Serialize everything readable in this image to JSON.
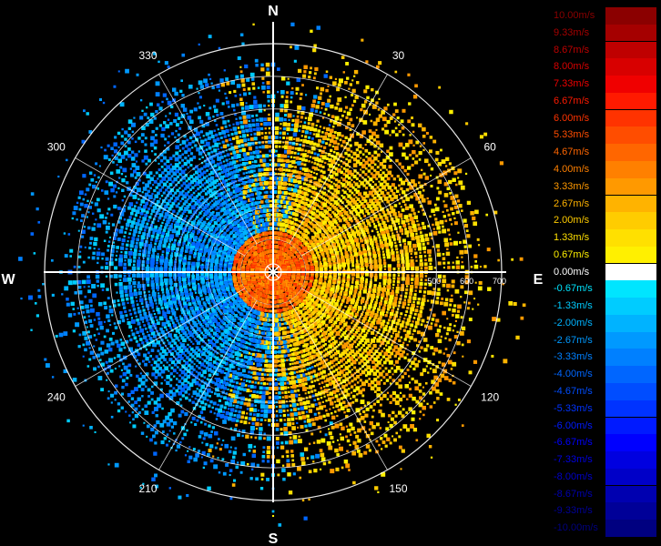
{
  "compass": {
    "north": "N",
    "east": "E",
    "south": "S",
    "west": "W"
  },
  "azimuth_labels": [
    {
      "deg": 30,
      "text": "30"
    },
    {
      "deg": 60,
      "text": "60"
    },
    {
      "deg": 120,
      "text": "120"
    },
    {
      "deg": 150,
      "text": "150"
    },
    {
      "deg": 210,
      "text": "210"
    },
    {
      "deg": 240,
      "text": "240"
    },
    {
      "deg": 300,
      "text": "300"
    },
    {
      "deg": 330,
      "text": "330"
    }
  ],
  "range_labels": [
    {
      "value": 500,
      "text": "500"
    },
    {
      "value": 600,
      "text": "600"
    },
    {
      "value": 700,
      "text": "700"
    }
  ],
  "range_ring_values": [
    100,
    200,
    300,
    400,
    500,
    600,
    700
  ],
  "legend": [
    {
      "label": "10.00m/s",
      "color": "#8b0000",
      "text_color": "#8b0000"
    },
    {
      "label": "9.33m/s",
      "color": "#a50000",
      "text_color": "#a50000"
    },
    {
      "label": "8.67m/s",
      "color": "#bf0000",
      "text_color": "#bf0000"
    },
    {
      "label": "8.00m/s",
      "color": "#d80000",
      "text_color": "#d80000"
    },
    {
      "label": "7.33m/s",
      "color": "#f00000",
      "text_color": "#f00000"
    },
    {
      "label": "6.67m/s",
      "color": "#ff1a00",
      "text_color": "#ff1a00"
    },
    {
      "label": "6.00m/s",
      "color": "#ff3300",
      "text_color": "#ff3300"
    },
    {
      "label": "5.33m/s",
      "color": "#ff4d00",
      "text_color": "#ff4d00"
    },
    {
      "label": "4.67m/s",
      "color": "#ff6600",
      "text_color": "#ff6600"
    },
    {
      "label": "4.00m/s",
      "color": "#ff8000",
      "text_color": "#ff8000"
    },
    {
      "label": "3.33m/s",
      "color": "#ff9900",
      "text_color": "#ff9900"
    },
    {
      "label": "2.67m/s",
      "color": "#ffb300",
      "text_color": "#ffb300"
    },
    {
      "label": "2.00m/s",
      "color": "#ffcc00",
      "text_color": "#ffcc00"
    },
    {
      "label": "1.33m/s",
      "color": "#ffe000",
      "text_color": "#ffe000"
    },
    {
      "label": "0.67m/s",
      "color": "#fff000",
      "text_color": "#fff000"
    },
    {
      "label": "0.00m/s",
      "color": "#ffffff",
      "text_color": "#ffffff"
    },
    {
      "label": "-0.67m/s",
      "color": "#00e5ff",
      "text_color": "#00e5ff"
    },
    {
      "label": "-1.33m/s",
      "color": "#00ccff",
      "text_color": "#00ccff"
    },
    {
      "label": "-2.00m/s",
      "color": "#00b3ff",
      "text_color": "#00b3ff"
    },
    {
      "label": "-2.67m/s",
      "color": "#0099ff",
      "text_color": "#0099ff"
    },
    {
      "label": "-3.33m/s",
      "color": "#0080ff",
      "text_color": "#0080ff"
    },
    {
      "label": "-4.00m/s",
      "color": "#0066ff",
      "text_color": "#0066ff"
    },
    {
      "label": "-4.67m/s",
      "color": "#004dff",
      "text_color": "#004dff"
    },
    {
      "label": "-5.33m/s",
      "color": "#0033ff",
      "text_color": "#0033ff"
    },
    {
      "label": "-6.00m/s",
      "color": "#001aff",
      "text_color": "#001aff"
    },
    {
      "label": "-6.67m/s",
      "color": "#0000ff",
      "text_color": "#0000ff"
    },
    {
      "label": "-7.33m/s",
      "color": "#0000e0",
      "text_color": "#0000e0"
    },
    {
      "label": "-8.00m/s",
      "color": "#0000c8",
      "text_color": "#0000c8"
    },
    {
      "label": "-8.67m/s",
      "color": "#0000b0",
      "text_color": "#0000b0"
    },
    {
      "label": "-9.33m/s",
      "color": "#000098",
      "text_color": "#000098"
    },
    {
      "label": "-10.00m/s",
      "color": "#000080",
      "text_color": "#000080"
    }
  ]
}
